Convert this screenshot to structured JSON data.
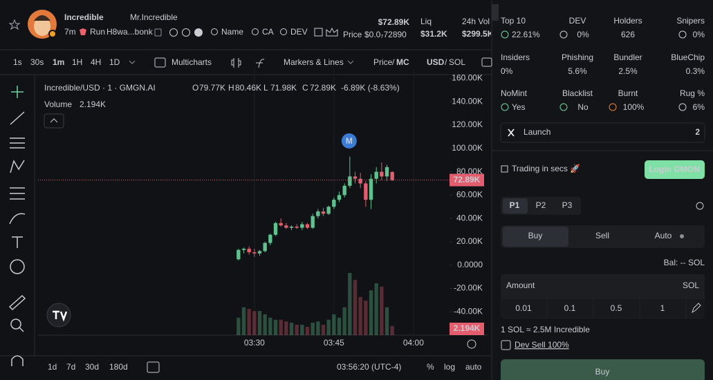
{
  "header": {
    "name": "Incredible",
    "handle": "Mr.Incredible",
    "age": "7m",
    "run": "Run",
    "address": "H8wa...bonk",
    "links": [
      "Name",
      "CA",
      "DEV"
    ],
    "price": "$72.89K",
    "price_label": "Price",
    "price_value": "$0.0₇72890",
    "stats": [
      {
        "label": "Liq",
        "value": "$31.2K"
      },
      {
        "label": "24h Vol",
        "value": "$299.5K"
      }
    ]
  },
  "toolbar": {
    "intervals": [
      "1s",
      "30s",
      "1m",
      "1H",
      "4H",
      "1D"
    ],
    "multicharts": "Multicharts",
    "markers": "Markers & Lines",
    "price": "Price",
    "mc": "MC",
    "usd": "USD",
    "sol": "SOL"
  },
  "chart_data": {
    "type": "candlestick",
    "title": "Incredible/USD · 1 · GMGN.AI",
    "legend": [
      {
        "key": "O",
        "value": "79.77K"
      },
      {
        "key": "H",
        "value": "80.46K"
      },
      {
        "key": "L",
        "value": "71.98K"
      },
      {
        "key": "C",
        "value": "72.89K"
      }
    ],
    "change": "-6.89K (-8.63%)",
    "volume_title": "Volume",
    "volume_value": "2.194K",
    "last_price_label": "72.89K",
    "last_volume_label": "2.194K",
    "marker": "M",
    "up_color": "#5ec28f",
    "down_color": "#e35d6f",
    "open": [
      5000,
      13000,
      14000,
      11000,
      10000,
      12000,
      19000,
      26000,
      36000,
      34000,
      32000,
      33000,
      32000,
      35000,
      32000,
      42000,
      46000,
      44000,
      50000,
      56000,
      60000,
      68000,
      76000,
      74000,
      70000,
      56000,
      74000,
      80000,
      76000,
      79770
    ],
    "high": [
      14000,
      15000,
      16000,
      14000,
      13000,
      20000,
      27000,
      37000,
      40000,
      36000,
      34000,
      35000,
      37000,
      36000,
      44000,
      48000,
      49000,
      51000,
      58000,
      63000,
      70000,
      93000,
      80000,
      79000,
      72000,
      78000,
      84000,
      88000,
      86000,
      80460
    ],
    "low": [
      4000,
      10000,
      9000,
      7000,
      8000,
      11000,
      17000,
      25000,
      33000,
      31000,
      30000,
      31000,
      30000,
      31000,
      31000,
      40000,
      42000,
      43000,
      48000,
      54000,
      58000,
      66000,
      70000,
      66000,
      50000,
      48000,
      70000,
      73000,
      72000,
      71980
    ],
    "close": [
      13000,
      14000,
      11000,
      10000,
      12000,
      19000,
      26000,
      36000,
      34000,
      32000,
      33000,
      32000,
      35000,
      32000,
      42000,
      46000,
      44000,
      50000,
      56000,
      60000,
      68000,
      76000,
      74000,
      70000,
      56000,
      74000,
      80000,
      76000,
      84000,
      72890
    ],
    "volume": [
      4200,
      6700,
      6300,
      5800,
      5800,
      5000,
      4200,
      3700,
      3700,
      3300,
      3000,
      2500,
      2500,
      2000,
      3000,
      3300,
      2500,
      3700,
      5000,
      4200,
      6700,
      15000,
      13300,
      9200,
      8300,
      10800,
      12500,
      11700,
      6700,
      2194
    ],
    "xlim": [
      -37.8,
      39.8
    ],
    "xticks": [
      {
        "value": 3,
        "label": "03:30"
      },
      {
        "value": 18,
        "label": "03:45"
      },
      {
        "value": 33,
        "label": "04:00"
      }
    ],
    "ylim": [
      -60000,
      168000
    ],
    "yticks": [
      {
        "value": -40000,
        "label": "-40.00K"
      },
      {
        "value": -20000,
        "label": "-20.00K"
      },
      {
        "value": 0,
        "label": "0.0000"
      },
      {
        "value": 20000,
        "label": "20.00K"
      },
      {
        "value": 40000,
        "label": "40.00K"
      },
      {
        "value": 60000,
        "label": "60.00K"
      },
      {
        "value": 80000,
        "label": "80.00K"
      },
      {
        "value": 100000,
        "label": "100.00K"
      },
      {
        "value": 120000,
        "label": "120.00K"
      },
      {
        "value": 140000,
        "label": "140.00K"
      },
      {
        "value": 160000,
        "label": "160.00K"
      }
    ],
    "grid": "x"
  },
  "footer": {
    "ranges": [
      "1d",
      "7d",
      "30d",
      "180d"
    ],
    "time": "03:56:20 (UTC-4)",
    "options": [
      "%",
      "log",
      "auto"
    ]
  },
  "panel": {
    "metrics": [
      {
        "label": "Top 10",
        "value": "22.61%"
      },
      {
        "label": "DEV",
        "value": "0%"
      },
      {
        "label": "Holders",
        "value": "626"
      },
      {
        "label": "Snipers",
        "value": "0%"
      },
      {
        "label": "Insiders",
        "value": "0%"
      },
      {
        "label": "Phishing",
        "value": "5.6%"
      },
      {
        "label": "Bundler",
        "value": "2.5%"
      },
      {
        "label": "BlueChip",
        "value": "0.3%"
      },
      {
        "label": "NoMint",
        "value": "Yes"
      },
      {
        "label": "Blacklist",
        "value": "No"
      },
      {
        "label": "Burnt",
        "value": "100%"
      },
      {
        "label": "Rug %",
        "value": "6%"
      }
    ],
    "launch": {
      "label": "Launch",
      "value": "2"
    },
    "trading": "Trading in secs 🚀",
    "login": "Login GMGN",
    "presets": [
      "P1",
      "P2",
      "P3"
    ],
    "tabs": [
      "Buy",
      "Sell",
      "Auto"
    ],
    "balance": "Bal: -- SOL",
    "amount": "Amount",
    "unit": "SOL",
    "amounts": [
      "0.01",
      "0.1",
      "0.5",
      "1"
    ],
    "rate": "1 SOL ≈ 2.5M Incredible",
    "dev_sell": "Dev Sell 100%",
    "buy": "Buy"
  }
}
